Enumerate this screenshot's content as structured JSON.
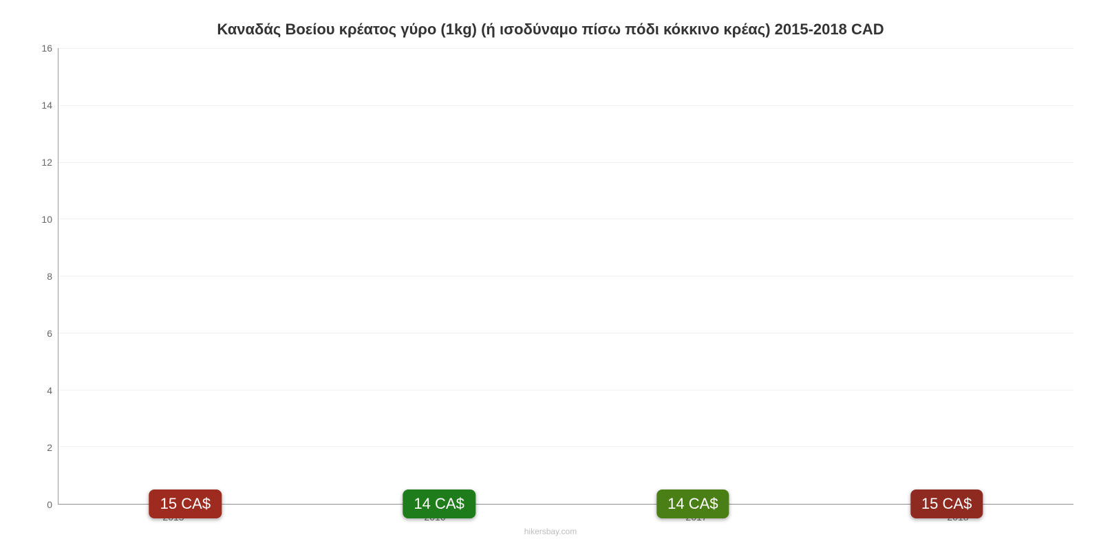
{
  "chart": {
    "type": "bar",
    "title": "Καναδάς Βοείου κρέατος γύρο (1kg) (ή ισοδύναμο πίσω πόδι κόκκινο κρέας) 2015-2018 CAD",
    "title_fontsize": 22,
    "title_color": "#333333",
    "background_color": "#ffffff",
    "grid_color": "#f0f0f0",
    "axis_color": "#9a9a9a",
    "tick_label_color": "#666666",
    "tick_label_fontsize": 14,
    "ylim_min": 0,
    "ylim_max": 16,
    "ytick_step": 2,
    "yticks": [
      "16",
      "14",
      "12",
      "10",
      "8",
      "6",
      "4",
      "2",
      "0"
    ],
    "categories": [
      "2015",
      "2016",
      "2017",
      "2018"
    ],
    "values": [
      14.8,
      13.5,
      13.9,
      14.8
    ],
    "bar_colors": [
      "#e9573e",
      "#3ad12f",
      "#7ecf22",
      "#da4436"
    ],
    "badge_colors": [
      "#9d2b1f",
      "#1f7c1a",
      "#4a7f15",
      "#8f2a21"
    ],
    "badge_labels": [
      "15 CA$",
      "14 CA$",
      "14 CA$",
      "15 CA$"
    ],
    "badge_fontsize": 22,
    "badge_text_color": "#ffffff",
    "bar_width_pct": 80
  },
  "attribution": "hikersbay.com",
  "attribution_color": "#bdbdbd",
  "attribution_fontsize": 12
}
